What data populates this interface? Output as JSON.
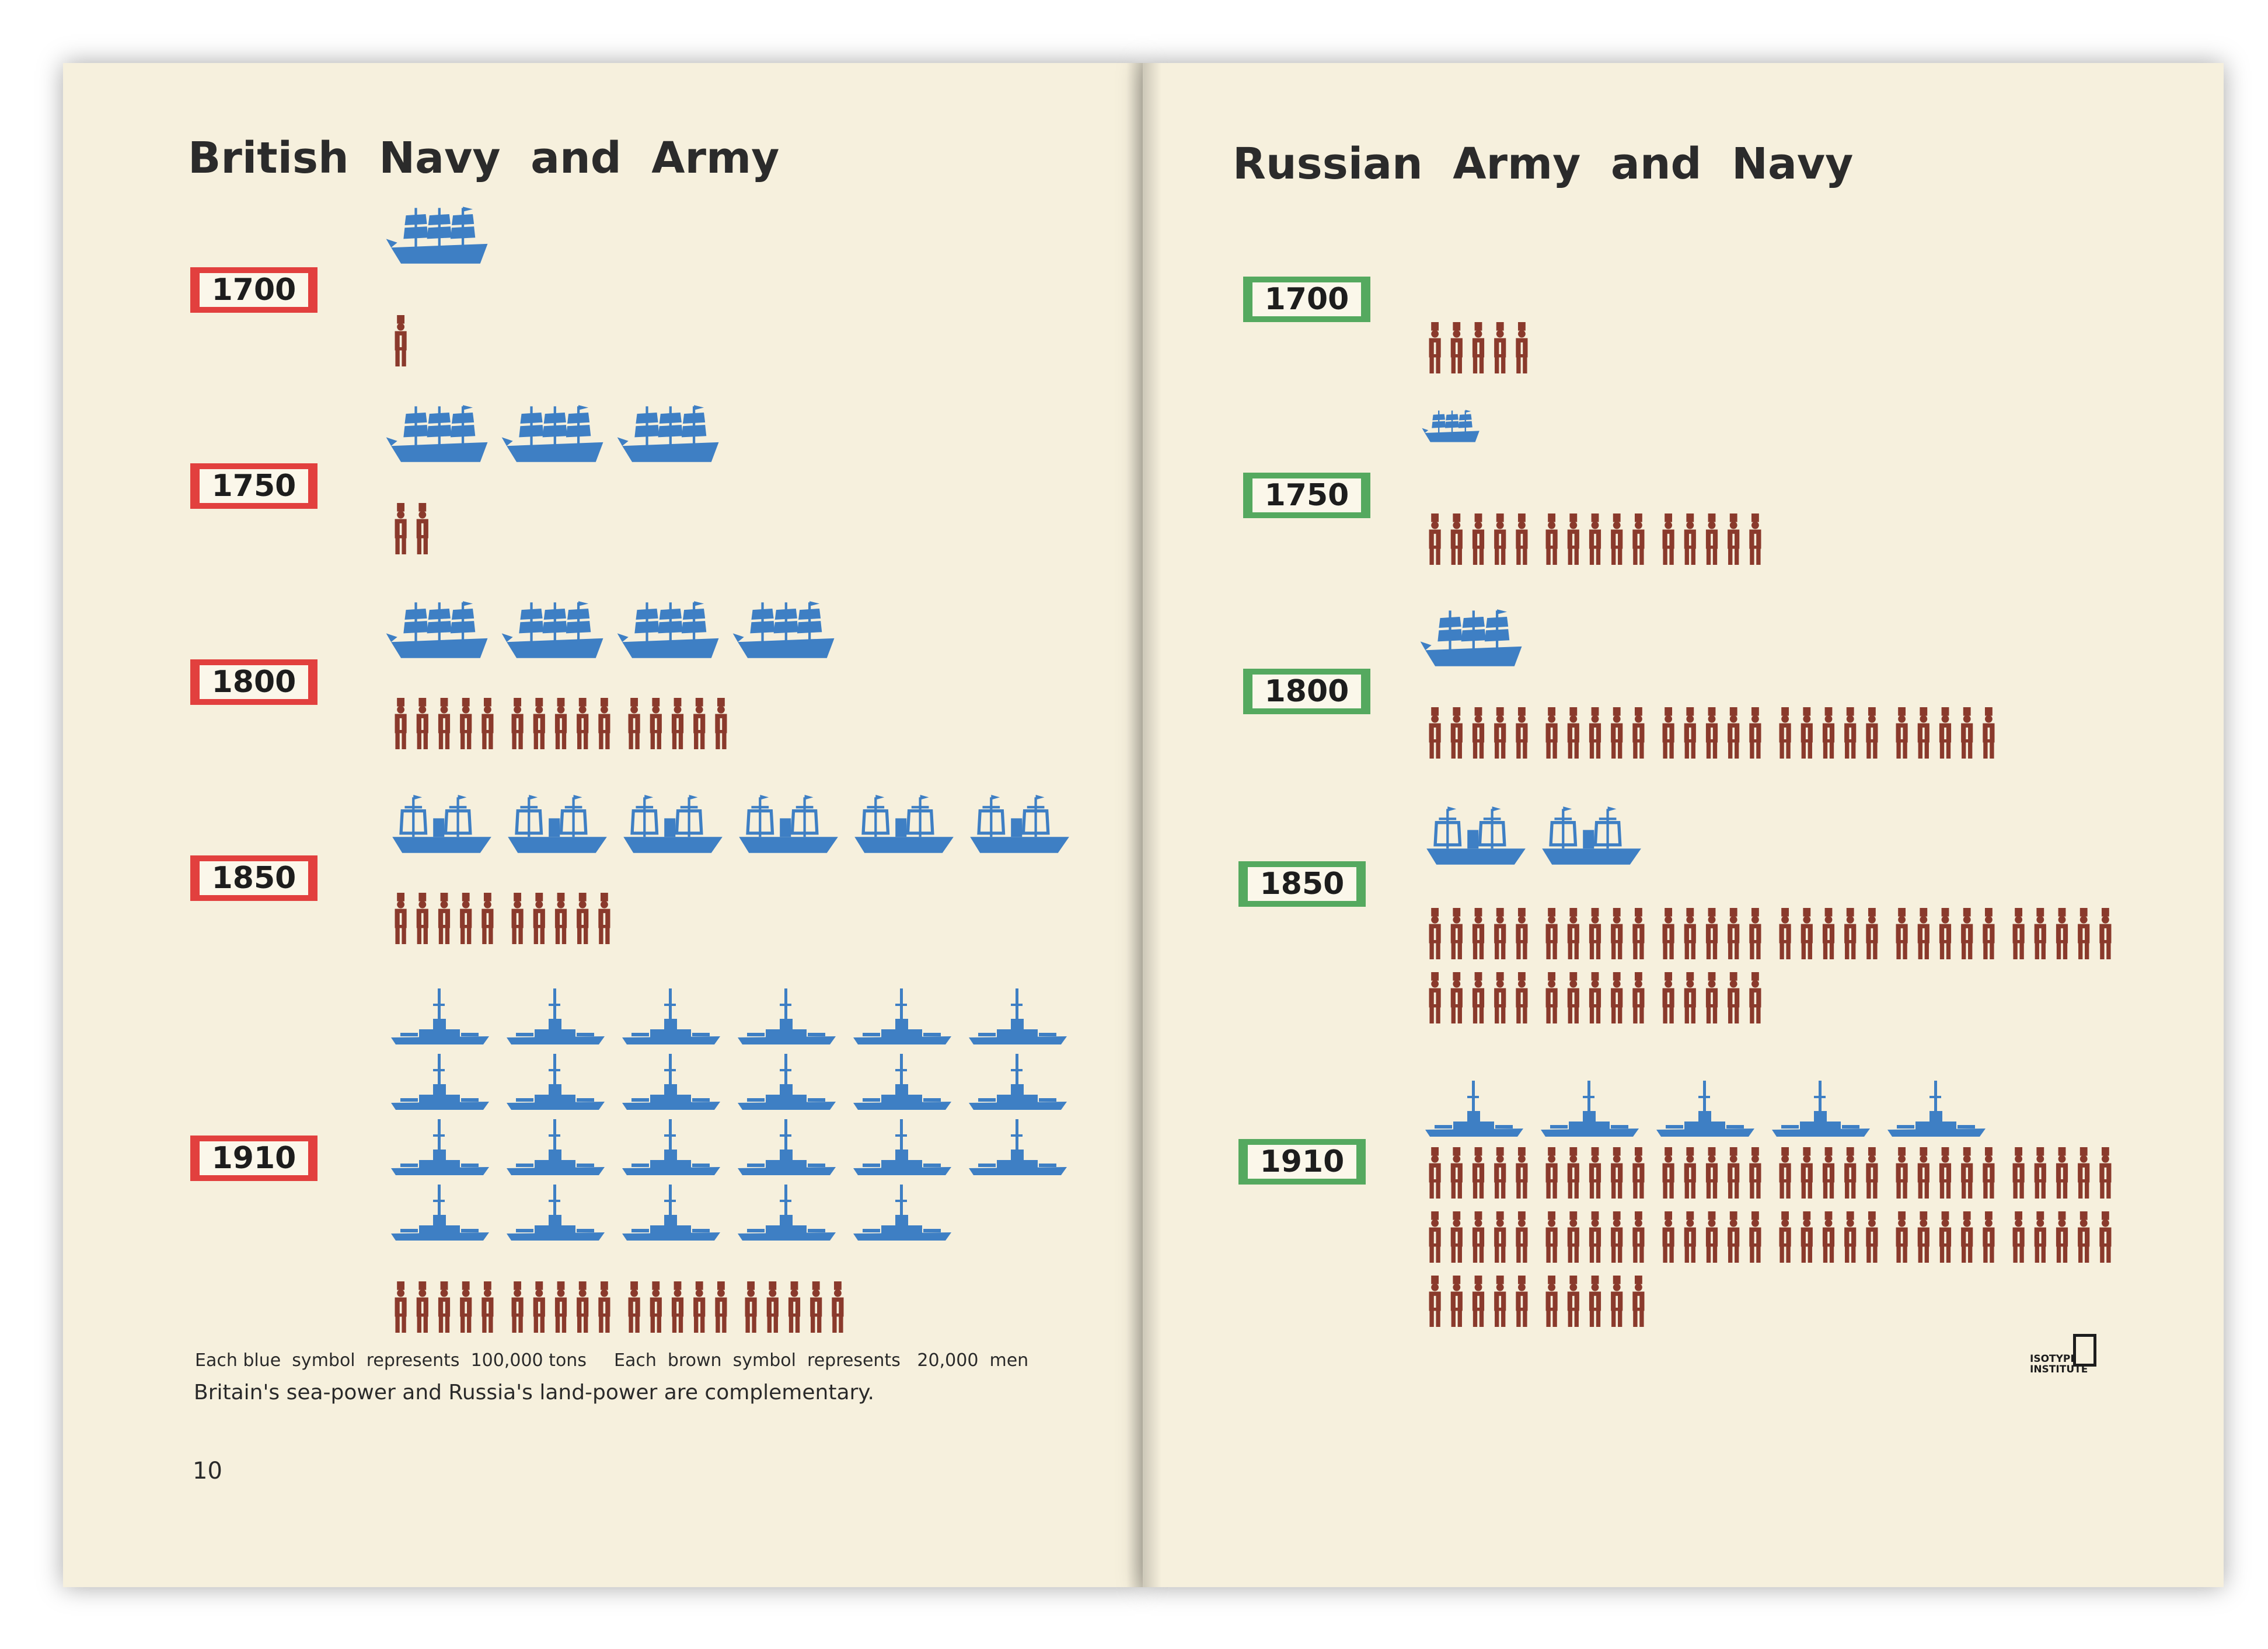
{
  "left_page": {
    "title": "British  Navy  and  Army",
    "page_number": "10",
    "note_blue": "Each blue  symbol  represents  100,000 tons",
    "note_brown": "Each  brown  symbol  represents   20,000  men",
    "caption": "Britain's sea-power and Russia's land-power are complementary."
  },
  "right_page": {
    "title": "Russian  Army  and  Navy",
    "logo_text_1": "ISOTYPE",
    "logo_text_2": "INSTITUTE"
  },
  "colors": {
    "navy": "#3e7fc4",
    "army": "#8a3a2c",
    "britain_label": "#e2403e",
    "russia_label": "#55a95f"
  },
  "icons": {
    "navy_sail": "sailing-ship-icon",
    "navy_steam": "steamship-icon",
    "navy_modern": "battleship-icon",
    "army": "soldier-icon"
  },
  "chart_data": [
    {
      "type": "pictogram",
      "title": "British  Navy  and  Army",
      "units": {
        "navy": "100,000 tons per symbol",
        "army": "20,000 men per symbol"
      },
      "categories": [
        "1700",
        "1750",
        "1800",
        "1850",
        "1910"
      ],
      "series": [
        {
          "name": "navy",
          "values": [
            1,
            3,
            4,
            6,
            23
          ]
        },
        {
          "name": "army",
          "values": [
            0.2,
            0.4,
            3,
            2,
            4
          ]
        }
      ]
    },
    {
      "type": "pictogram",
      "title": "Russian  Army  and  Navy",
      "units": {
        "navy": "100,000 tons per symbol",
        "army": "20,000 men per symbol"
      },
      "categories": [
        "1700",
        "1750",
        "1800",
        "1850",
        "1910"
      ],
      "series": [
        {
          "name": "army",
          "values": [
            1,
            3,
            5,
            9,
            14
          ]
        },
        {
          "name": "navy",
          "values": [
            0,
            0.5,
            1,
            2,
            5
          ]
        }
      ]
    }
  ]
}
